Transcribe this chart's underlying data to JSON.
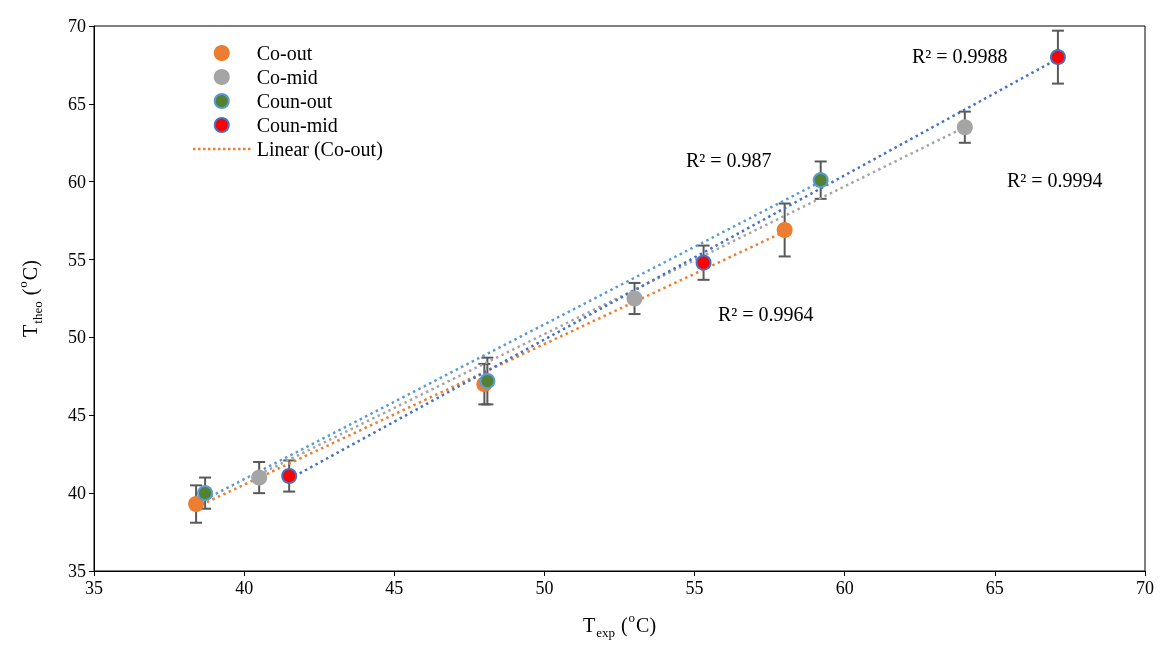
{
  "chart_data": {
    "type": "scatter",
    "xlabel": "T$_{exp}$ ($^{o}$C)",
    "ylabel": "T$_{theo}$ ($^{o}$C)",
    "xlim": [
      35,
      70
    ],
    "xticks": [
      35,
      40,
      45,
      50,
      55,
      60,
      65,
      70
    ],
    "ylim": [
      35,
      70
    ],
    "yticks": [
      35,
      40,
      45,
      50,
      55,
      60,
      65,
      70
    ],
    "grid": false,
    "legend": "top left",
    "marker": "circle",
    "series": [
      {
        "name": "Co-out",
        "color": "#ed7d31",
        "x": [
          38.4,
          48.0,
          58.0
        ],
        "values": [
          39.3,
          47.0,
          56.9
        ],
        "errors": [
          1.2,
          1.3,
          1.7
        ]
      },
      {
        "name": "Co-mid",
        "color": "#a5a5a5",
        "x": [
          40.5,
          53.0,
          64.0
        ],
        "values": [
          41.0,
          52.5,
          63.5
        ],
        "errors": [
          1.0,
          1.0,
          1.0
        ]
      },
      {
        "name": "Coun-out",
        "color": "#548235",
        "x": [
          38.7,
          48.1,
          59.2
        ],
        "values": [
          40.0,
          47.2,
          60.1
        ],
        "errors": [
          1.0,
          1.5,
          1.2
        ]
      },
      {
        "name": "Coun-mid",
        "color": "#ff0000",
        "x": [
          41.5,
          55.3,
          67.1
        ],
        "values": [
          41.1,
          54.8,
          68.0
        ],
        "errors": [
          1.0,
          1.1,
          1.7
        ]
      },
      {
        "name": "Linear (Co-out)",
        "type": "line",
        "line_style": "dotted",
        "marker": "none",
        "color": "#ed7d31",
        "x": [
          38.4,
          58.0
        ],
        "values": [
          39.1,
          56.8
        ]
      },
      {
        "type": "line",
        "line_style": "dotted",
        "marker": "none",
        "color": "#a5a5a5",
        "x": [
          40.5,
          64.0
        ],
        "values": [
          41.2,
          63.5
        ]
      },
      {
        "type": "line",
        "line_style": "dotted",
        "marker": "none",
        "color": "#5b9bd5",
        "x": [
          38.7,
          59.2
        ],
        "values": [
          39.6,
          60.0
        ]
      },
      {
        "type": "line",
        "line_style": "dotted",
        "marker": "none",
        "color": "#4472c4",
        "x": [
          41.5,
          67.1
        ],
        "values": [
          40.9,
          67.9
        ]
      }
    ],
    "annotations": [
      "R² = 0.9988",
      "R² = 0.9994",
      "R² = 0.987",
      "R² = 0.9964"
    ]
  }
}
